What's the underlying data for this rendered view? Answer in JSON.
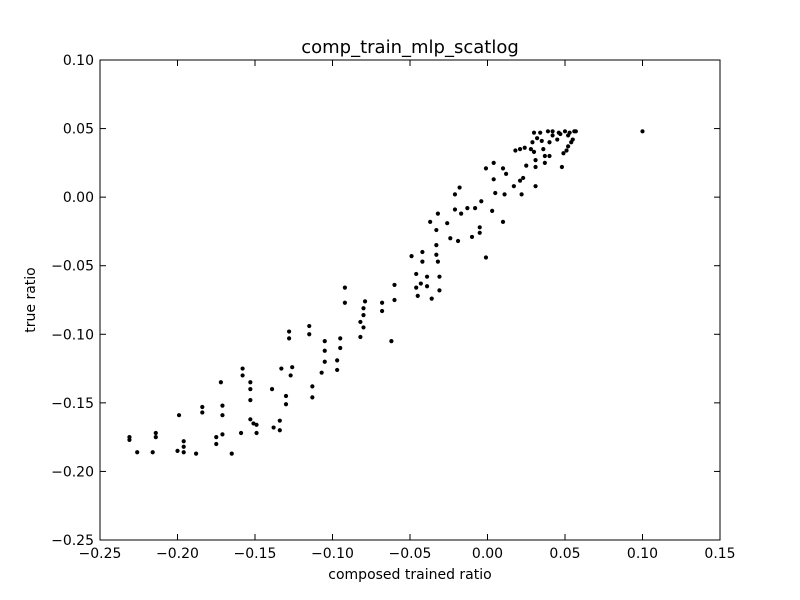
{
  "chart_data": {
    "type": "scatter",
    "title": "comp_train_mlp_scatlog",
    "xlabel": "composed trained ratio",
    "ylabel": "true ratio",
    "xlim": [
      -0.25,
      0.15
    ],
    "ylim": [
      -0.25,
      0.1
    ],
    "xticks": [
      -0.25,
      -0.2,
      -0.15,
      -0.1,
      -0.05,
      0.0,
      0.05,
      0.1,
      0.15
    ],
    "xtick_labels": [
      "−0.25",
      "−0.20",
      "−0.15",
      "−0.10",
      "−0.05",
      "0.00",
      "0.05",
      "0.10",
      "0.15"
    ],
    "yticks": [
      -0.25,
      -0.2,
      -0.15,
      -0.1,
      -0.05,
      0.0,
      0.05,
      0.1
    ],
    "ytick_labels": [
      "−0.25",
      "−0.20",
      "−0.15",
      "−0.10",
      "−0.05",
      "0.00",
      "0.05",
      "0.10"
    ],
    "grid": false,
    "marker_color": "#000000",
    "points": [
      [
        -0.231,
        -0.177
      ],
      [
        -0.231,
        -0.175
      ],
      [
        -0.226,
        -0.186
      ],
      [
        -0.216,
        -0.186
      ],
      [
        -0.214,
        -0.175
      ],
      [
        -0.214,
        -0.172
      ],
      [
        -0.2,
        -0.185
      ],
      [
        -0.199,
        -0.159
      ],
      [
        -0.196,
        -0.186
      ],
      [
        -0.196,
        -0.182
      ],
      [
        -0.196,
        -0.178
      ],
      [
        -0.188,
        -0.187
      ],
      [
        -0.184,
        -0.157
      ],
      [
        -0.184,
        -0.153
      ],
      [
        -0.175,
        -0.18
      ],
      [
        -0.175,
        -0.175
      ],
      [
        -0.171,
        -0.159
      ],
      [
        -0.171,
        -0.152
      ],
      [
        -0.172,
        -0.135
      ],
      [
        -0.171,
        -0.173
      ],
      [
        -0.165,
        -0.187
      ],
      [
        -0.159,
        -0.172
      ],
      [
        -0.158,
        -0.13
      ],
      [
        -0.158,
        -0.125
      ],
      [
        -0.153,
        -0.148
      ],
      [
        -0.153,
        -0.14
      ],
      [
        -0.153,
        -0.135
      ],
      [
        -0.153,
        -0.162
      ],
      [
        -0.151,
        -0.165
      ],
      [
        -0.149,
        -0.172
      ],
      [
        -0.149,
        -0.166
      ],
      [
        -0.139,
        -0.14
      ],
      [
        -0.138,
        -0.168
      ],
      [
        -0.134,
        -0.17
      ],
      [
        -0.134,
        -0.163
      ],
      [
        -0.133,
        -0.125
      ],
      [
        -0.13,
        -0.151
      ],
      [
        -0.13,
        -0.145
      ],
      [
        -0.128,
        -0.103
      ],
      [
        -0.128,
        -0.098
      ],
      [
        -0.127,
        -0.13
      ],
      [
        -0.126,
        -0.124
      ],
      [
        -0.115,
        -0.1
      ],
      [
        -0.115,
        -0.094
      ],
      [
        -0.113,
        -0.146
      ],
      [
        -0.113,
        -0.138
      ],
      [
        -0.107,
        -0.128
      ],
      [
        -0.105,
        -0.12
      ],
      [
        -0.105,
        -0.112
      ],
      [
        -0.105,
        -0.105
      ],
      [
        -0.097,
        -0.126
      ],
      [
        -0.097,
        -0.119
      ],
      [
        -0.095,
        -0.11
      ],
      [
        -0.095,
        -0.103
      ],
      [
        -0.092,
        -0.077
      ],
      [
        -0.092,
        -0.066
      ],
      [
        -0.082,
        -0.102
      ],
      [
        -0.082,
        -0.091
      ],
      [
        -0.08,
        -0.086
      ],
      [
        -0.08,
        -0.095
      ],
      [
        -0.08,
        -0.081
      ],
      [
        -0.079,
        -0.076
      ],
      [
        -0.068,
        -0.083
      ],
      [
        -0.068,
        -0.077
      ],
      [
        -0.062,
        -0.105
      ],
      [
        -0.06,
        -0.075
      ],
      [
        -0.06,
        -0.064
      ],
      [
        -0.049,
        -0.043
      ],
      [
        -0.046,
        -0.056
      ],
      [
        -0.046,
        -0.066
      ],
      [
        -0.045,
        -0.072
      ],
      [
        -0.043,
        -0.063
      ],
      [
        -0.042,
        -0.047
      ],
      [
        -0.042,
        -0.04
      ],
      [
        -0.039,
        -0.065
      ],
      [
        -0.039,
        -0.058
      ],
      [
        -0.037,
        -0.018
      ],
      [
        -0.036,
        -0.074
      ],
      [
        -0.033,
        -0.042
      ],
      [
        -0.033,
        -0.035
      ],
      [
        -0.033,
        -0.024
      ],
      [
        -0.032,
        -0.012
      ],
      [
        -0.032,
        -0.047
      ],
      [
        -0.031,
        -0.058
      ],
      [
        -0.031,
        -0.068
      ],
      [
        -0.026,
        -0.019
      ],
      [
        -0.024,
        -0.03
      ],
      [
        -0.021,
        -0.009
      ],
      [
        -0.021,
        0.002
      ],
      [
        -0.019,
        -0.032
      ],
      [
        -0.018,
        0.007
      ],
      [
        -0.017,
        -0.012
      ],
      [
        -0.013,
        -0.008
      ],
      [
        -0.01,
        -0.029
      ],
      [
        -0.008,
        -0.008
      ],
      [
        -0.005,
        -0.026
      ],
      [
        -0.005,
        -0.022
      ],
      [
        -0.004,
        -0.003
      ],
      [
        -0.001,
        0.021
      ],
      [
        -0.001,
        -0.044
      ],
      [
        0.003,
        -0.01
      ],
      [
        0.004,
        0.013
      ],
      [
        0.004,
        0.025
      ],
      [
        0.005,
        0.003
      ],
      [
        0.01,
        0.021
      ],
      [
        0.01,
        -0.018
      ],
      [
        0.011,
        0.002
      ],
      [
        0.012,
        0.017
      ],
      [
        0.017,
        0.008
      ],
      [
        0.018,
        0.034
      ],
      [
        0.021,
        0.012
      ],
      [
        0.021,
        0.035
      ],
      [
        0.022,
        0.002
      ],
      [
        0.023,
        0.014
      ],
      [
        0.024,
        0.036
      ],
      [
        0.025,
        0.023
      ],
      [
        0.028,
        0.035
      ],
      [
        0.03,
        0.033
      ],
      [
        0.03,
        0.047
      ],
      [
        0.029,
        0.04
      ],
      [
        0.031,
        0.008
      ],
      [
        0.031,
        0.022
      ],
      [
        0.031,
        0.027
      ],
      [
        0.032,
        0.043
      ],
      [
        0.034,
        0.047
      ],
      [
        0.035,
        0.041
      ],
      [
        0.036,
        0.035
      ],
      [
        0.037,
        0.025
      ],
      [
        0.037,
        0.03
      ],
      [
        0.039,
        0.048
      ],
      [
        0.04,
        0.04
      ],
      [
        0.04,
        0.03
      ],
      [
        0.042,
        0.045
      ],
      [
        0.042,
        0.048
      ],
      [
        0.045,
        0.042
      ],
      [
        0.046,
        0.047
      ],
      [
        0.047,
        0.046
      ],
      [
        0.048,
        0.022
      ],
      [
        0.049,
        0.032
      ],
      [
        0.05,
        0.048
      ],
      [
        0.051,
        0.034
      ],
      [
        0.052,
        0.037
      ],
      [
        0.052,
        0.045
      ],
      [
        0.053,
        0.047
      ],
      [
        0.054,
        0.04
      ],
      [
        0.055,
        0.042
      ],
      [
        0.056,
        0.048
      ],
      [
        0.057,
        0.048
      ],
      [
        0.1,
        0.048
      ]
    ]
  }
}
